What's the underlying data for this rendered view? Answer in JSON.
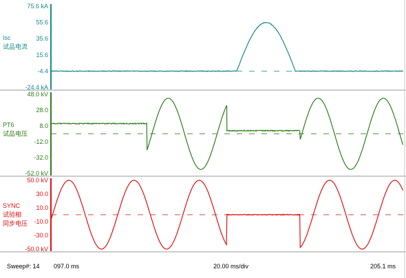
{
  "chart_data": [
    {
      "type": "line",
      "label": "Isc",
      "label2": "试品电流",
      "color": "#1a8a8a",
      "ticks": [
        "75.6 kA",
        "55.6",
        "35.6",
        "15.6",
        "-4.4",
        "-24.4 kA"
      ],
      "tick_values": [
        75.6,
        55.6,
        35.6,
        15.6,
        -4.4,
        -24.4
      ],
      "ylim": [
        -24.4,
        75.6
      ],
      "baseline": -4.4,
      "pulse": {
        "start_ms": 154.0,
        "end_ms": 172.0,
        "peak": 55.6
      }
    },
    {
      "type": "line",
      "label": "PT6",
      "label2": "试品电压",
      "color": "#2e7d1a",
      "ticks": [
        "48.0 kV",
        "28.0",
        "8.0",
        "-12.0",
        "-32.0",
        "-52.0 kV"
      ],
      "tick_values": [
        48.0,
        28.0,
        8.0,
        -12.0,
        -32.0,
        -52.0
      ],
      "ylim": [
        -52.0,
        48.0
      ],
      "segments": [
        {
          "kind": "flat",
          "from_ms": 97.0,
          "to_ms": 126.5,
          "value": 11.0
        },
        {
          "kind": "sine",
          "from_ms": 126.5,
          "to_ms": 151.0,
          "amplitude": 45.0,
          "offset": -2.0,
          "period_ms": 20.0,
          "phase_ms": 128.0
        },
        {
          "kind": "flat",
          "from_ms": 151.0,
          "to_ms": 173.5,
          "value": 2.0
        },
        {
          "kind": "sine",
          "from_ms": 173.5,
          "to_ms": 205.1,
          "amplitude": 45.0,
          "offset": -2.0,
          "period_ms": 20.0,
          "phase_ms": 174.0
        }
      ]
    },
    {
      "type": "line",
      "label": "SYNC",
      "label2": "试验相",
      "label3": "同步电压",
      "color": "#e01010",
      "ticks": [
        "50.0 kV",
        "30.0",
        "10.0",
        "-10.0",
        "-30.0",
        "-50.0 kV"
      ],
      "tick_values": [
        50.0,
        30.0,
        10.0,
        -10.0,
        -30.0,
        -50.0
      ],
      "ylim": [
        -50.0,
        50.0
      ],
      "segments": [
        {
          "kind": "sine",
          "from_ms": 97.0,
          "to_ms": 151.0,
          "amplitude": 50.0,
          "offset": 0.0,
          "period_ms": 20.0,
          "phase_ms": 97.5
        },
        {
          "kind": "flat",
          "from_ms": 151.0,
          "to_ms": 173.5,
          "value": 0.0
        },
        {
          "kind": "sine",
          "from_ms": 173.5,
          "to_ms": 205.1,
          "amplitude": 50.0,
          "offset": 0.0,
          "period_ms": 20.0,
          "phase_ms": 177.5
        }
      ]
    }
  ],
  "x_range_ms": [
    97.0,
    205.1
  ],
  "footer": {
    "sweep": "Sweep#: 14",
    "start": "097.0 ms",
    "scale": "20.00 ms/div",
    "end": "205.1 ms"
  }
}
